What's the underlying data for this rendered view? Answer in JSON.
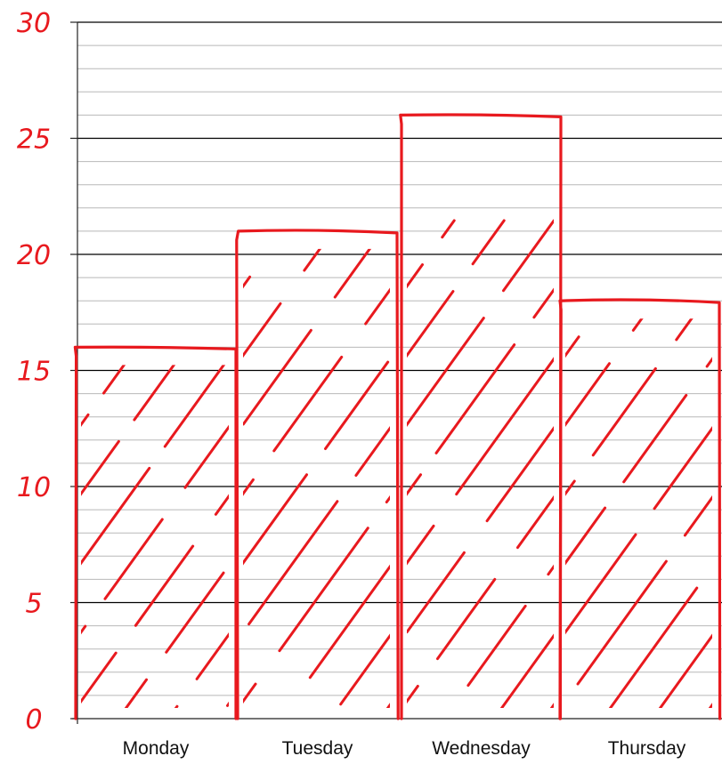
{
  "colors": {
    "bar_stroke": "#e8191e",
    "major_grid": "#000000",
    "minor_grid": "#b8b8b8",
    "ytick_color": "#e8191e",
    "xtick_color": "#111111"
  },
  "chart_data": {
    "type": "bar",
    "categories": [
      "Monday",
      "Tuesday",
      "Wednesday",
      "Thursday"
    ],
    "values": [
      16,
      21,
      26,
      18
    ],
    "ylim": [
      0,
      30
    ],
    "yticks": [
      "0",
      "5",
      "10",
      "15",
      "20",
      "25",
      "30"
    ],
    "grid": true,
    "bar_fill": "hand-drawn diagonal hatching",
    "title": "",
    "xlabel": "",
    "ylabel": ""
  }
}
